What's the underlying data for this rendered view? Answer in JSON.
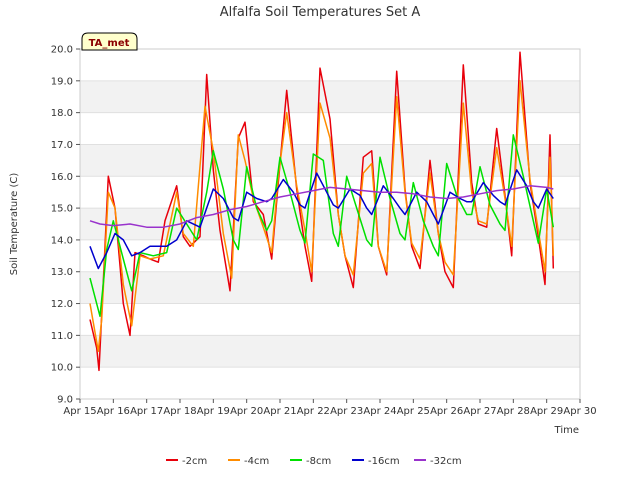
{
  "chart_data": {
    "type": "line",
    "title": "Alfalfa Soil Temperatures Set A",
    "xlabel": "Time",
    "ylabel": "Soil Temperature (C)",
    "badge": "TA_met",
    "ylim": [
      9.0,
      20.0
    ],
    "yticks": [
      "9.0",
      "10.0",
      "11.0",
      "12.0",
      "13.0",
      "14.0",
      "15.0",
      "16.0",
      "17.0",
      "18.0",
      "19.0",
      "20.0"
    ],
    "xlim": [
      15,
      30
    ],
    "xticks": [
      "Apr 15",
      "Apr 16",
      "Apr 17",
      "Apr 18",
      "Apr 19",
      "Apr 20",
      "Apr 21",
      "Apr 22",
      "Apr 23",
      "Apr 24",
      "Apr 25",
      "Apr 26",
      "Apr 27",
      "Apr 28",
      "Apr 29",
      "Apr 30"
    ],
    "grid": "horizontal bands",
    "legend_position": "bottom",
    "series": [
      {
        "name": "-2cm",
        "color": "#e8000b",
        "x": [
          15.3,
          15.5,
          15.57,
          15.75,
          15.85,
          16.05,
          16.3,
          16.5,
          16.65,
          16.9,
          17.1,
          17.35,
          17.55,
          17.9,
          18.1,
          18.3,
          18.6,
          18.8,
          19.0,
          19.2,
          19.5,
          19.75,
          19.95,
          20.2,
          20.5,
          20.75,
          20.95,
          21.2,
          21.5,
          21.75,
          21.95,
          22.2,
          22.5,
          22.75,
          22.95,
          23.2,
          23.5,
          23.75,
          23.95,
          24.2,
          24.5,
          24.75,
          24.95,
          25.2,
          25.5,
          25.75,
          25.95,
          26.2,
          26.5,
          26.75,
          26.95,
          27.2,
          27.5,
          27.75,
          27.95,
          28.2,
          28.5,
          28.75,
          28.95,
          29.1,
          29.2
        ],
        "y": [
          11.5,
          10.6,
          9.9,
          13.8,
          16.0,
          15.0,
          12.0,
          11.0,
          13.6,
          13.5,
          13.4,
          13.3,
          14.6,
          15.7,
          14.1,
          13.8,
          14.1,
          19.2,
          16.2,
          14.3,
          12.4,
          17.2,
          17.7,
          15.2,
          14.8,
          13.4,
          15.8,
          18.7,
          15.6,
          13.8,
          12.7,
          19.4,
          17.8,
          14.8,
          13.5,
          12.5,
          16.6,
          16.8,
          13.8,
          12.9,
          19.3,
          15.6,
          13.8,
          13.1,
          16.5,
          14.2,
          13.0,
          12.5,
          19.5,
          15.8,
          14.5,
          14.4,
          17.5,
          15.4,
          13.5,
          19.9,
          15.8,
          14.1,
          12.6,
          17.3,
          13.1
        ]
      },
      {
        "name": "-4cm",
        "color": "#ff8c00",
        "x": [
          15.3,
          15.55,
          15.65,
          15.85,
          16.05,
          16.3,
          16.55,
          16.8,
          17.1,
          17.5,
          17.9,
          18.1,
          18.4,
          18.75,
          19.0,
          19.3,
          19.55,
          19.75,
          19.95,
          20.2,
          20.5,
          20.75,
          20.95,
          21.2,
          21.5,
          21.75,
          21.95,
          22.2,
          22.5,
          22.75,
          22.95,
          23.2,
          23.5,
          23.75,
          23.95,
          24.2,
          24.5,
          24.75,
          24.95,
          25.2,
          25.5,
          25.75,
          25.95,
          26.2,
          26.5,
          26.75,
          26.95,
          27.2,
          27.5,
          27.75,
          27.95,
          28.2,
          28.5,
          28.75,
          28.95,
          29.1,
          29.2
        ],
        "y": [
          12.0,
          10.5,
          11.5,
          15.5,
          15.0,
          12.6,
          11.3,
          13.5,
          13.4,
          13.5,
          15.5,
          14.2,
          13.8,
          18.2,
          16.8,
          14.2,
          12.8,
          17.3,
          16.5,
          15.3,
          14.4,
          13.6,
          16.0,
          18.0,
          15.7,
          14.3,
          13.0,
          18.3,
          17.2,
          14.8,
          13.5,
          12.9,
          16.1,
          16.4,
          13.8,
          13.0,
          18.5,
          15.5,
          13.9,
          13.4,
          16.1,
          14.2,
          13.3,
          12.9,
          18.3,
          15.5,
          14.6,
          14.5,
          16.9,
          15.3,
          13.8,
          19.0,
          15.9,
          14.3,
          13.0,
          16.6,
          13.5
        ]
      },
      {
        "name": "-8cm",
        "color": "#00e000",
        "x": [
          15.3,
          15.6,
          15.8,
          16.0,
          16.3,
          16.55,
          16.8,
          17.2,
          17.6,
          17.9,
          18.2,
          18.5,
          18.8,
          19.0,
          19.3,
          19.6,
          19.75,
          20.0,
          20.3,
          20.6,
          20.75,
          21.0,
          21.3,
          21.6,
          21.75,
          22.0,
          22.3,
          22.6,
          22.75,
          23.0,
          23.3,
          23.6,
          23.75,
          24.0,
          24.3,
          24.6,
          24.75,
          25.0,
          25.3,
          25.6,
          25.75,
          26.0,
          26.3,
          26.6,
          26.75,
          27.0,
          27.3,
          27.6,
          27.75,
          28.0,
          28.3,
          28.6,
          28.75,
          29.0,
          29.2
        ],
        "y": [
          12.8,
          11.6,
          13.7,
          14.6,
          13.4,
          12.4,
          13.6,
          13.5,
          13.6,
          15.0,
          14.5,
          14.0,
          15.5,
          16.8,
          15.6,
          14.0,
          13.7,
          16.3,
          15.0,
          14.3,
          14.6,
          16.6,
          15.5,
          14.3,
          13.9,
          16.7,
          16.5,
          14.2,
          13.8,
          16.0,
          15.0,
          14.0,
          13.8,
          16.6,
          15.3,
          14.2,
          14.0,
          15.8,
          14.6,
          13.8,
          13.5,
          16.4,
          15.4,
          14.8,
          14.8,
          16.3,
          15.1,
          14.5,
          14.3,
          17.3,
          16.0,
          14.6,
          13.9,
          15.6,
          14.4
        ]
      },
      {
        "name": "-16cm",
        "color": "#0000cd",
        "x": [
          15.3,
          15.55,
          15.8,
          16.05,
          16.3,
          16.55,
          16.8,
          17.1,
          17.6,
          17.9,
          18.2,
          18.6,
          19.0,
          19.3,
          19.6,
          19.75,
          20.0,
          20.3,
          20.6,
          20.75,
          21.1,
          21.4,
          21.6,
          21.75,
          22.1,
          22.4,
          22.6,
          22.75,
          23.1,
          23.4,
          23.6,
          23.75,
          24.1,
          24.4,
          24.6,
          24.75,
          25.1,
          25.4,
          25.6,
          25.75,
          26.1,
          26.4,
          26.6,
          26.75,
          27.1,
          27.4,
          27.6,
          27.75,
          28.1,
          28.4,
          28.6,
          28.75,
          29.0,
          29.2
        ],
        "y": [
          13.8,
          13.1,
          13.6,
          14.2,
          14.0,
          13.5,
          13.6,
          13.8,
          13.8,
          14.0,
          14.6,
          14.4,
          15.6,
          15.3,
          14.7,
          14.6,
          15.5,
          15.3,
          15.2,
          15.3,
          15.9,
          15.5,
          15.1,
          15.0,
          16.1,
          15.5,
          15.1,
          15.0,
          15.6,
          15.4,
          15.0,
          14.8,
          15.7,
          15.3,
          15.0,
          14.8,
          15.5,
          15.2,
          14.8,
          14.5,
          15.5,
          15.3,
          15.2,
          15.2,
          15.8,
          15.4,
          15.2,
          15.1,
          16.2,
          15.7,
          15.2,
          15.0,
          15.6,
          15.3
        ]
      },
      {
        "name": "-32cm",
        "color": "#9932cc",
        "x": [
          15.3,
          15.6,
          16.0,
          16.5,
          17.0,
          17.5,
          18.0,
          18.5,
          19.0,
          19.5,
          20.0,
          20.5,
          21.0,
          21.5,
          22.0,
          22.5,
          23.0,
          23.5,
          24.0,
          24.5,
          25.0,
          25.5,
          26.0,
          26.5,
          27.0,
          27.5,
          28.0,
          28.5,
          29.0,
          29.2
        ],
        "y": [
          14.6,
          14.5,
          14.45,
          14.5,
          14.4,
          14.4,
          14.5,
          14.7,
          14.8,
          14.95,
          15.05,
          15.2,
          15.35,
          15.45,
          15.55,
          15.65,
          15.6,
          15.55,
          15.5,
          15.5,
          15.45,
          15.35,
          15.3,
          15.35,
          15.45,
          15.55,
          15.6,
          15.7,
          15.65,
          15.6
        ]
      }
    ]
  }
}
